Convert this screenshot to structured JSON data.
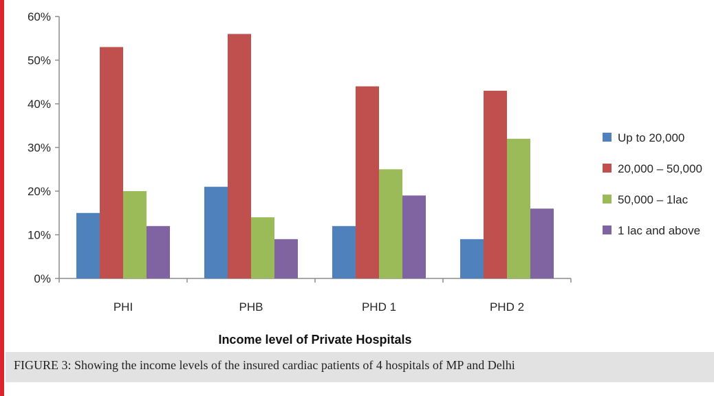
{
  "colors": {
    "accent": "#d9232d",
    "series": [
      "#4f81bd",
      "#c0504d",
      "#9bbb59",
      "#8064a2"
    ]
  },
  "caption": "FIGURE 3: Showing the income levels of the insured cardiac patients of 4 hospitals of MP and Delhi",
  "chart_data": {
    "type": "bar",
    "title": "",
    "xlabel": "Income level of Private Hospitals",
    "ylabel": "",
    "ylim": [
      0,
      60
    ],
    "yticks": [
      "0%",
      "10%",
      "20%",
      "30%",
      "40%",
      "50%",
      "60%"
    ],
    "categories": [
      "PHI",
      "PHB",
      "PHD 1",
      "PHD 2"
    ],
    "series": [
      {
        "name": "Up to 20,000",
        "values": [
          15,
          21,
          12,
          9
        ]
      },
      {
        "name": "20,000 – 50,000",
        "values": [
          53,
          56,
          44,
          43
        ]
      },
      {
        "name": "50,000 – 1lac",
        "values": [
          20,
          14,
          25,
          32
        ]
      },
      {
        "name": "1 lac and above",
        "values": [
          12,
          9,
          19,
          16
        ]
      }
    ],
    "grid": false,
    "legend": "right"
  }
}
